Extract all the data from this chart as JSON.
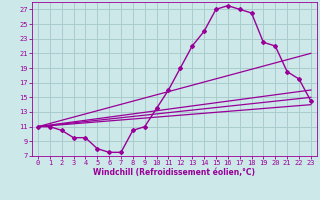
{
  "xlabel": "Windchill (Refroidissement éolien,°C)",
  "bg_color": "#cce8e8",
  "grid_color": "#aacccc",
  "line_color": "#990099",
  "xlim": [
    -0.5,
    23.5
  ],
  "ylim": [
    7,
    28
  ],
  "yticks": [
    7,
    9,
    11,
    13,
    15,
    17,
    19,
    21,
    23,
    25,
    27
  ],
  "xticks": [
    0,
    1,
    2,
    3,
    4,
    5,
    6,
    7,
    8,
    9,
    10,
    11,
    12,
    13,
    14,
    15,
    16,
    17,
    18,
    19,
    20,
    21,
    22,
    23
  ],
  "curve_x": [
    0,
    1,
    2,
    3,
    4,
    5,
    6,
    7,
    8,
    9,
    10,
    11,
    12,
    13,
    14,
    15,
    16,
    17,
    18,
    19,
    20,
    21,
    22,
    23
  ],
  "curve_y": [
    11,
    11,
    10.5,
    9.5,
    9.5,
    8,
    7.5,
    7.5,
    10.5,
    11,
    13.5,
    16,
    19,
    22,
    24,
    27,
    27.5,
    27,
    26.5,
    22.5,
    22,
    18.5,
    17.5,
    14.5
  ],
  "line1_x": [
    0,
    23
  ],
  "line1_y": [
    11,
    14
  ],
  "line2_x": [
    0,
    23
  ],
  "line2_y": [
    11,
    15
  ],
  "line3_x": [
    0,
    23
  ],
  "line3_y": [
    11,
    16
  ],
  "line4_x": [
    0,
    23
  ],
  "line4_y": [
    11,
    21
  ]
}
